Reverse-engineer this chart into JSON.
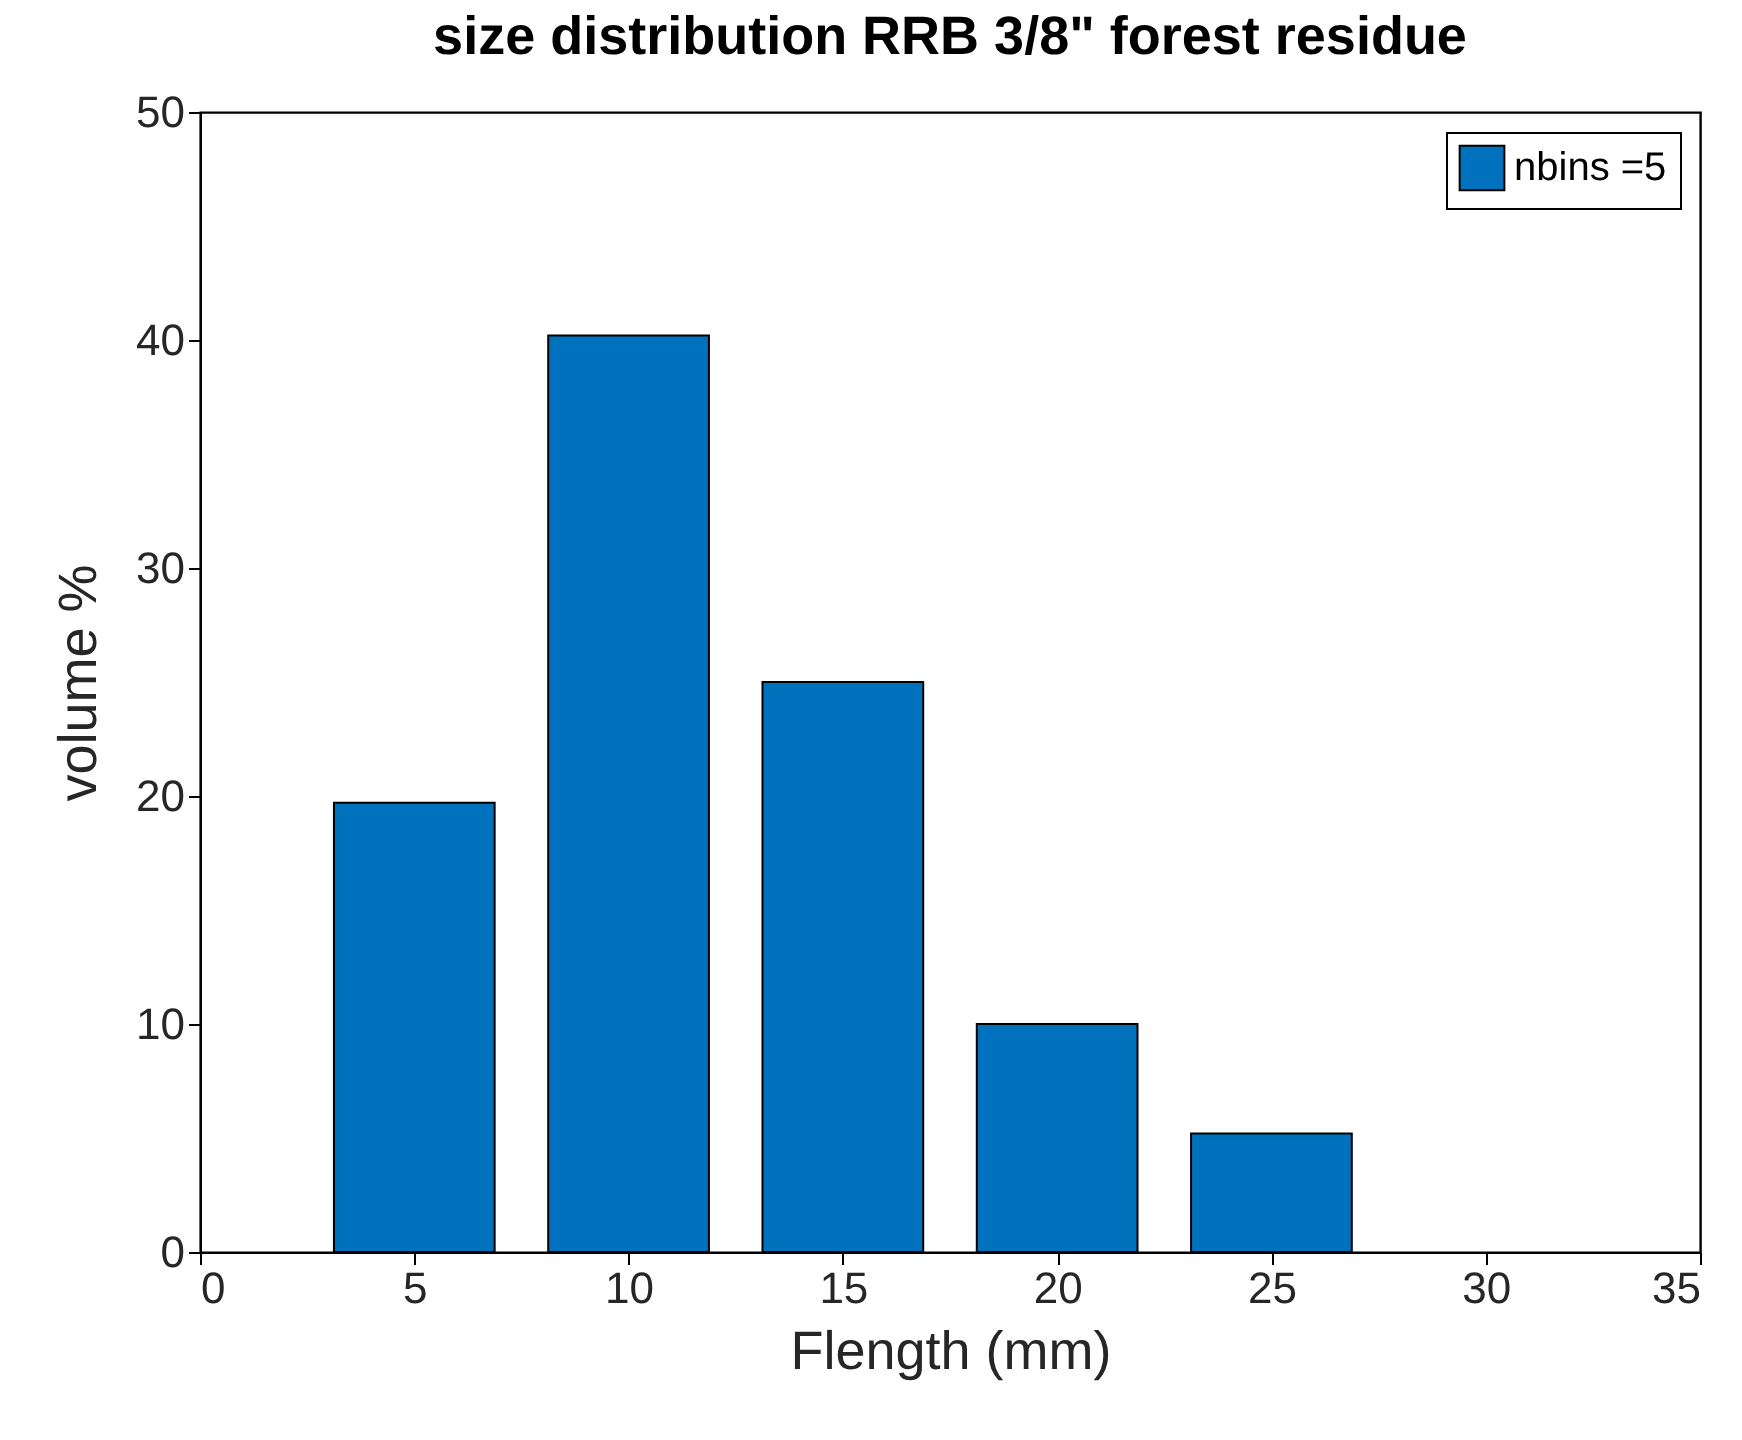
{
  "chart_data": {
    "type": "bar",
    "title": "size distribution RRB 3/8\" forest residue",
    "xlabel": "Flength (mm)",
    "ylabel": "volume %",
    "x": [
      5,
      10,
      15,
      20,
      25
    ],
    "series": [
      {
        "name": "nbins =5",
        "color": "#0072bd",
        "values": [
          19.7,
          40.2,
          25.0,
          10.0,
          5.2
        ]
      }
    ],
    "xlim": [
      0,
      35
    ],
    "xticks": [
      0,
      5,
      10,
      15,
      20,
      25,
      30,
      35
    ],
    "ylim": [
      0,
      50
    ],
    "yticks": [
      0,
      10,
      20,
      30,
      40,
      50
    ],
    "grid": false,
    "legend": "top right"
  }
}
